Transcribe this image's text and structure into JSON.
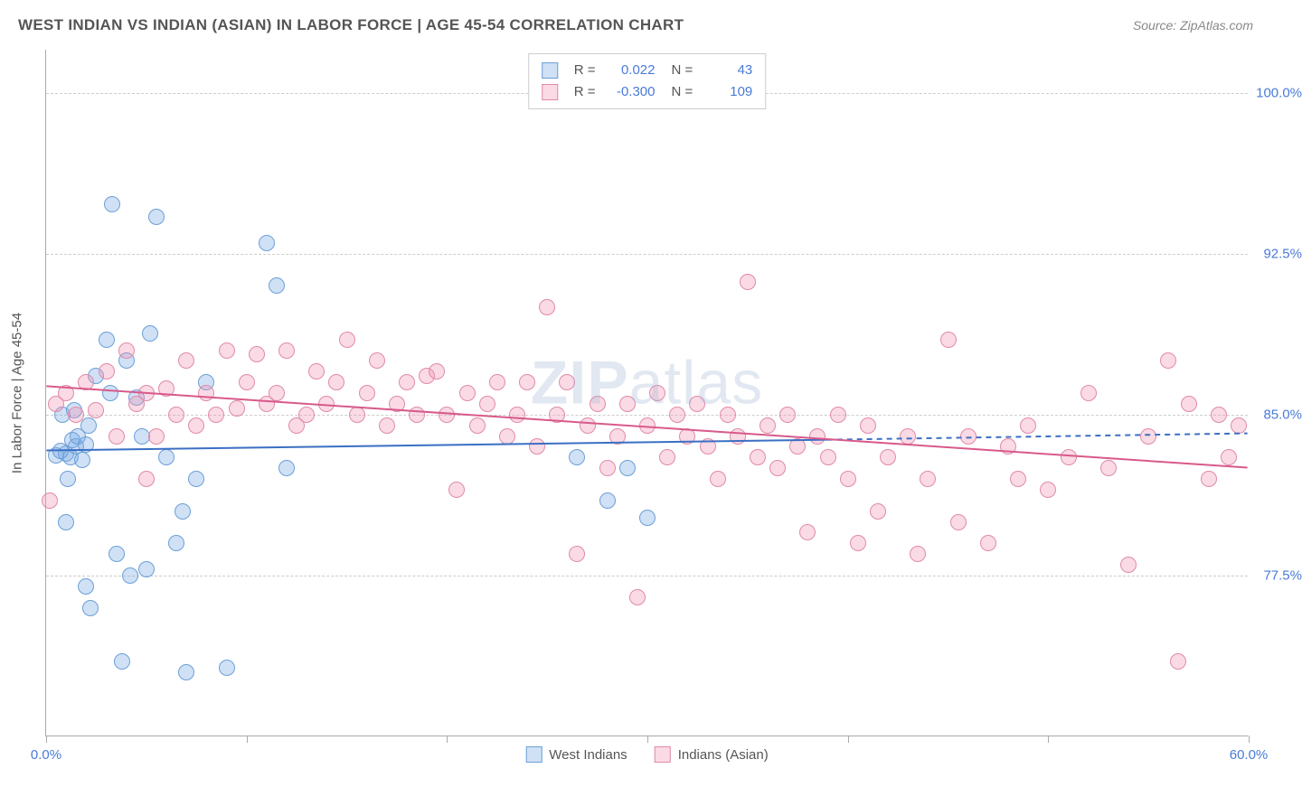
{
  "header": {
    "title": "WEST INDIAN VS INDIAN (ASIAN) IN LABOR FORCE | AGE 45-54 CORRELATION CHART",
    "source": "Source: ZipAtlas.com"
  },
  "chart": {
    "type": "scatter",
    "ylabel": "In Labor Force | Age 45-54",
    "xlim": [
      0,
      60
    ],
    "ylim": [
      70,
      102
    ],
    "xtick_positions": [
      0,
      10,
      20,
      30,
      40,
      50,
      60
    ],
    "xtick_labels": {
      "start": "0.0%",
      "end": "60.0%"
    },
    "ytick_positions": [
      77.5,
      85.0,
      92.5,
      100.0
    ],
    "ytick_labels": [
      "77.5%",
      "85.0%",
      "92.5%",
      "100.0%"
    ],
    "grid_color": "#cccccc",
    "background_color": "#ffffff",
    "axis_color": "#aaaaaa",
    "label_color": "#4a7bd8",
    "marker_radius": 9,
    "marker_stroke_width": 1.5,
    "series": [
      {
        "name": "West Indians",
        "fill": "rgba(120,170,230,0.35)",
        "stroke": "#6b9fd8",
        "R": "0.022",
        "N": "43",
        "regression": {
          "x1": 0,
          "y1": 83.3,
          "x2": 39,
          "y2": 83.8,
          "dash_x2": 60,
          "dash_y2": 84.1,
          "color": "#3b6fc4",
          "width": 2
        },
        "points": [
          [
            1.0,
            83.2
          ],
          [
            1.2,
            83.0
          ],
          [
            1.5,
            83.5
          ],
          [
            1.8,
            82.9
          ],
          [
            2.0,
            83.6
          ],
          [
            2.1,
            84.5
          ],
          [
            0.8,
            85.0
          ],
          [
            1.4,
            85.2
          ],
          [
            3.0,
            88.5
          ],
          [
            3.2,
            86.0
          ],
          [
            4.0,
            87.5
          ],
          [
            5.5,
            94.2
          ],
          [
            5.2,
            88.8
          ],
          [
            6.5,
            79.0
          ],
          [
            6.8,
            80.5
          ],
          [
            3.5,
            78.5
          ],
          [
            4.5,
            85.8
          ],
          [
            2.5,
            86.8
          ],
          [
            2.0,
            77.0
          ],
          [
            7.0,
            73.0
          ],
          [
            11.0,
            93.0
          ],
          [
            11.5,
            91.0
          ],
          [
            2.2,
            76.0
          ],
          [
            3.8,
            73.5
          ],
          [
            9.0,
            73.2
          ],
          [
            4.2,
            77.5
          ],
          [
            5.0,
            77.8
          ],
          [
            1.0,
            80.0
          ],
          [
            0.5,
            83.1
          ],
          [
            0.7,
            83.3
          ],
          [
            1.1,
            82.0
          ],
          [
            1.3,
            83.8
          ],
          [
            1.6,
            84.0
          ],
          [
            6.0,
            83.0
          ],
          [
            7.5,
            82.0
          ],
          [
            8.0,
            86.5
          ],
          [
            3.3,
            94.8
          ],
          [
            4.8,
            84.0
          ],
          [
            12.0,
            82.5
          ],
          [
            26.5,
            83.0
          ],
          [
            29.0,
            82.5
          ],
          [
            28.0,
            81.0
          ],
          [
            30.0,
            80.2
          ]
        ]
      },
      {
        "name": "Indians (Asian)",
        "fill": "rgba(240,150,180,0.35)",
        "stroke": "#e08aa8",
        "R": "-0.300",
        "N": "109",
        "regression": {
          "x1": 0,
          "y1": 86.3,
          "x2": 60,
          "y2": 82.5,
          "color": "#d85a8a",
          "width": 2
        },
        "points": [
          [
            0.2,
            81.0
          ],
          [
            0.5,
            85.5
          ],
          [
            1.0,
            86.0
          ],
          [
            1.5,
            85.0
          ],
          [
            2.0,
            86.5
          ],
          [
            2.5,
            85.2
          ],
          [
            3.0,
            87.0
          ],
          [
            3.5,
            84.0
          ],
          [
            4.0,
            88.0
          ],
          [
            4.5,
            85.5
          ],
          [
            5.0,
            86.0
          ],
          [
            5.5,
            84.0
          ],
          [
            6.0,
            86.2
          ],
          [
            6.5,
            85.0
          ],
          [
            7.0,
            87.5
          ],
          [
            7.5,
            84.5
          ],
          [
            8.0,
            86.0
          ],
          [
            8.5,
            85.0
          ],
          [
            9.0,
            88.0
          ],
          [
            9.5,
            85.3
          ],
          [
            10.0,
            86.5
          ],
          [
            10.5,
            87.8
          ],
          [
            11.0,
            85.5
          ],
          [
            11.5,
            86.0
          ],
          [
            12.0,
            88.0
          ],
          [
            12.5,
            84.5
          ],
          [
            13.0,
            85.0
          ],
          [
            13.5,
            87.0
          ],
          [
            14.0,
            85.5
          ],
          [
            14.5,
            86.5
          ],
          [
            15.0,
            88.5
          ],
          [
            15.5,
            85.0
          ],
          [
            16.0,
            86.0
          ],
          [
            16.5,
            87.5
          ],
          [
            17.0,
            84.5
          ],
          [
            17.5,
            85.5
          ],
          [
            18.0,
            86.5
          ],
          [
            18.5,
            85.0
          ],
          [
            19.0,
            86.8
          ],
          [
            19.5,
            87.0
          ],
          [
            20.0,
            85.0
          ],
          [
            20.5,
            81.5
          ],
          [
            21.0,
            86.0
          ],
          [
            21.5,
            84.5
          ],
          [
            22.0,
            85.5
          ],
          [
            22.5,
            86.5
          ],
          [
            23.0,
            84.0
          ],
          [
            23.5,
            85.0
          ],
          [
            24.0,
            86.5
          ],
          [
            24.5,
            83.5
          ],
          [
            25.0,
            90.0
          ],
          [
            25.5,
            85.0
          ],
          [
            26.0,
            86.5
          ],
          [
            26.5,
            78.5
          ],
          [
            27.0,
            84.5
          ],
          [
            27.5,
            85.5
          ],
          [
            28.0,
            82.5
          ],
          [
            28.5,
            84.0
          ],
          [
            29.0,
            85.5
          ],
          [
            29.5,
            76.5
          ],
          [
            30.0,
            84.5
          ],
          [
            30.5,
            86.0
          ],
          [
            31.0,
            83.0
          ],
          [
            31.5,
            85.0
          ],
          [
            32.0,
            84.0
          ],
          [
            32.5,
            85.5
          ],
          [
            33.0,
            83.5
          ],
          [
            33.5,
            82.0
          ],
          [
            34.0,
            85.0
          ],
          [
            34.5,
            84.0
          ],
          [
            35.0,
            91.2
          ],
          [
            35.5,
            83.0
          ],
          [
            36.0,
            84.5
          ],
          [
            36.5,
            82.5
          ],
          [
            37.0,
            85.0
          ],
          [
            37.5,
            83.5
          ],
          [
            38.0,
            79.5
          ],
          [
            38.5,
            84.0
          ],
          [
            39.0,
            83.0
          ],
          [
            39.5,
            85.0
          ],
          [
            40.0,
            82.0
          ],
          [
            40.5,
            79.0
          ],
          [
            41.0,
            84.5
          ],
          [
            41.5,
            80.5
          ],
          [
            42.0,
            83.0
          ],
          [
            43.0,
            84.0
          ],
          [
            43.5,
            78.5
          ],
          [
            44.0,
            82.0
          ],
          [
            45.0,
            88.5
          ],
          [
            45.5,
            80.0
          ],
          [
            46.0,
            84.0
          ],
          [
            47.0,
            79.0
          ],
          [
            48.0,
            83.5
          ],
          [
            48.5,
            82.0
          ],
          [
            49.0,
            84.5
          ],
          [
            50.0,
            81.5
          ],
          [
            51.0,
            83.0
          ],
          [
            52.0,
            86.0
          ],
          [
            53.0,
            82.5
          ],
          [
            54.0,
            78.0
          ],
          [
            55.0,
            84.0
          ],
          [
            56.0,
            87.5
          ],
          [
            56.5,
            73.5
          ],
          [
            57.0,
            85.5
          ],
          [
            58.0,
            82.0
          ],
          [
            58.5,
            85.0
          ],
          [
            59.0,
            83.0
          ],
          [
            59.5,
            84.5
          ],
          [
            5.0,
            82.0
          ]
        ]
      }
    ],
    "bottom_legend": [
      "West Indians",
      "Indians (Asian)"
    ],
    "watermark": {
      "zip": "ZIP",
      "atlas": "atlas"
    }
  }
}
